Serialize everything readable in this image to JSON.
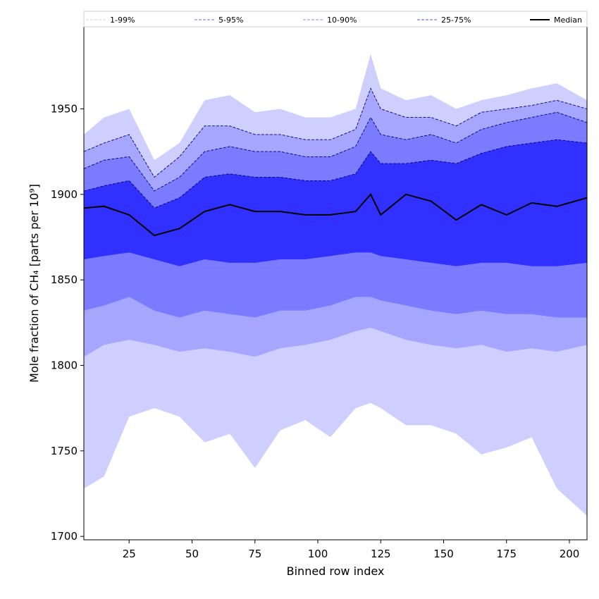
{
  "chart_data": {
    "type": "area",
    "xlabel": "Binned row index",
    "ylabel": "Mole fraction of CH₄ [parts per 10⁹]",
    "xlim": [
      7,
      207
    ],
    "ylim": [
      1698,
      1998
    ],
    "x_ticks": [
      25,
      50,
      75,
      100,
      125,
      150,
      175,
      200
    ],
    "y_ticks": [
      1700,
      1750,
      1800,
      1850,
      1900,
      1950
    ],
    "grid": false,
    "legend_position": "top",
    "legend": [
      {
        "label": "1-99%",
        "style": "band",
        "fill": "#ceceff",
        "line": "#cfcfee"
      },
      {
        "label": "5-95%",
        "style": "band",
        "fill": "#a6a6ff",
        "line": "#6c6cd8"
      },
      {
        "label": "10-90%",
        "style": "band",
        "fill": "#7b7bff",
        "line": "#8a8aee"
      },
      {
        "label": "25-75%",
        "style": "band",
        "fill": "#3030ff",
        "line": "#5555ee"
      },
      {
        "label": "Median",
        "style": "line",
        "line": "#000000"
      }
    ],
    "colors": {
      "band_1_99": "#ceceff",
      "band_5_95": "#a6a6ff",
      "band_10_90": "#7b7bff",
      "band_25_75": "#3030ff",
      "median": "#000000",
      "dashed_edge": "#00007a"
    },
    "x_samples": [
      7,
      15,
      25,
      35,
      45,
      55,
      65,
      75,
      85,
      95,
      105,
      115,
      121,
      125,
      135,
      145,
      155,
      165,
      175,
      185,
      195,
      207
    ],
    "series": [
      {
        "name": "1-99%",
        "lower": [
          1728,
          1735,
          1770,
          1775,
          1770,
          1755,
          1760,
          1740,
          1762,
          1768,
          1758,
          1775,
          1778,
          1775,
          1765,
          1765,
          1760,
          1748,
          1752,
          1758,
          1728,
          1712
        ],
        "upper": [
          1935,
          1945,
          1950,
          1920,
          1930,
          1955,
          1958,
          1948,
          1950,
          1945,
          1945,
          1950,
          1982,
          1962,
          1955,
          1958,
          1950,
          1955,
          1958,
          1962,
          1965,
          1955
        ]
      },
      {
        "name": "5-95%",
        "lower": [
          1805,
          1812,
          1815,
          1812,
          1808,
          1810,
          1808,
          1805,
          1810,
          1812,
          1815,
          1820,
          1822,
          1820,
          1815,
          1812,
          1810,
          1812,
          1808,
          1810,
          1808,
          1812
        ],
        "upper": [
          1925,
          1930,
          1935,
          1910,
          1922,
          1940,
          1940,
          1935,
          1935,
          1932,
          1932,
          1938,
          1962,
          1950,
          1945,
          1945,
          1940,
          1948,
          1950,
          1952,
          1955,
          1950
        ]
      },
      {
        "name": "10-90%",
        "lower": [
          1832,
          1835,
          1840,
          1832,
          1828,
          1832,
          1830,
          1828,
          1832,
          1832,
          1835,
          1840,
          1840,
          1838,
          1835,
          1832,
          1830,
          1832,
          1830,
          1830,
          1828,
          1828
        ],
        "upper": [
          1915,
          1920,
          1922,
          1902,
          1910,
          1925,
          1928,
          1925,
          1925,
          1922,
          1922,
          1928,
          1945,
          1935,
          1932,
          1935,
          1930,
          1938,
          1942,
          1945,
          1948,
          1942
        ]
      },
      {
        "name": "25-75%",
        "lower": [
          1862,
          1864,
          1866,
          1862,
          1858,
          1862,
          1860,
          1860,
          1862,
          1862,
          1864,
          1866,
          1866,
          1864,
          1862,
          1860,
          1858,
          1860,
          1860,
          1858,
          1858,
          1860
        ],
        "upper": [
          1902,
          1905,
          1908,
          1892,
          1898,
          1910,
          1912,
          1910,
          1910,
          1908,
          1908,
          1912,
          1925,
          1918,
          1918,
          1920,
          1918,
          1924,
          1928,
          1930,
          1932,
          1930
        ]
      },
      {
        "name": "Median",
        "values": [
          1892,
          1893,
          1888,
          1876,
          1880,
          1890,
          1894,
          1890,
          1890,
          1888,
          1888,
          1890,
          1900,
          1888,
          1900,
          1896,
          1885,
          1894,
          1888,
          1895,
          1893,
          1898
        ]
      }
    ]
  }
}
